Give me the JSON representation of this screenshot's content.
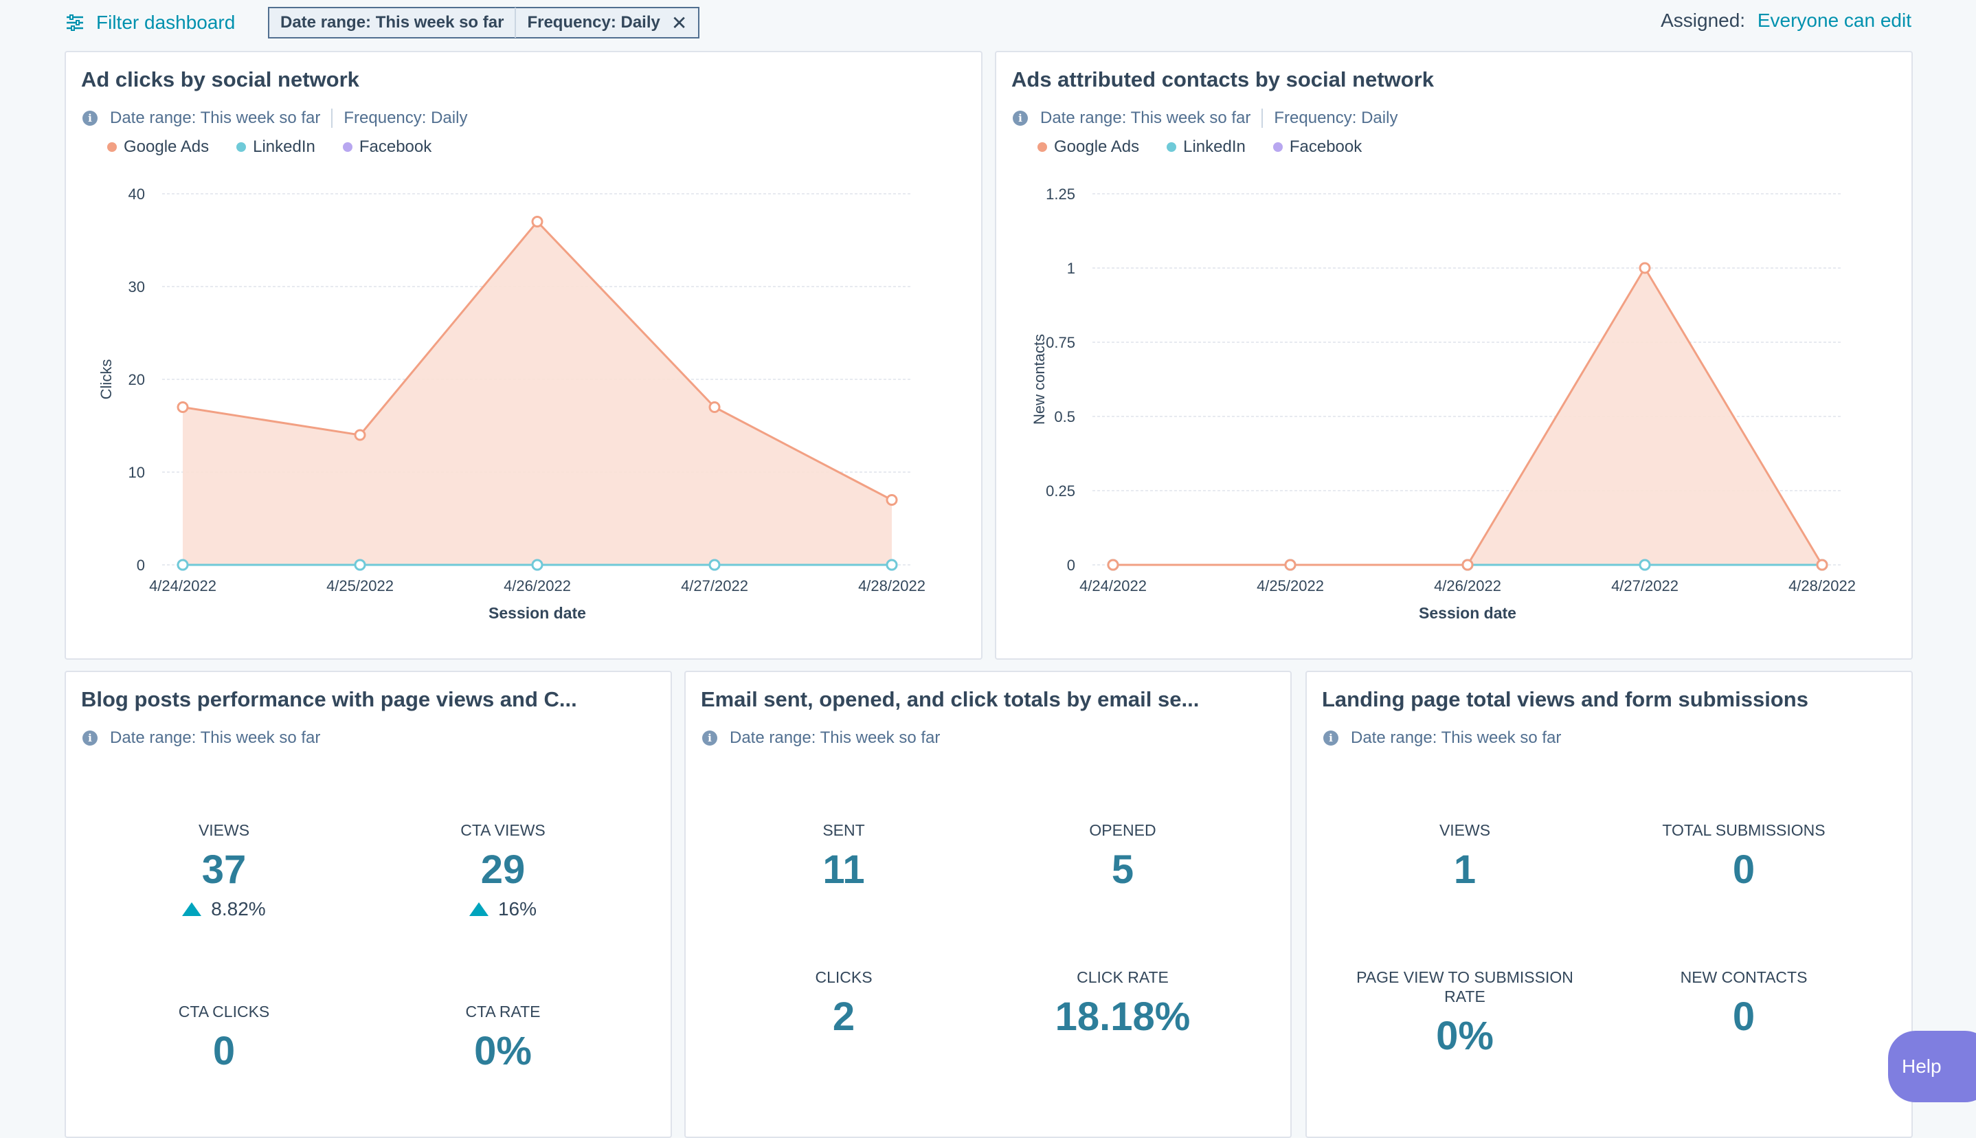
{
  "toolbar": {
    "filter_label": "Filter dashboard",
    "chip_date": "Date range: This week so far",
    "chip_freq": "Frequency: Daily",
    "assigned_label": "Assigned:",
    "assigned_value": "Everyone can edit"
  },
  "colors": {
    "google": "#f2a083",
    "linkedin": "#6fcad8",
    "facebook": "#b8a7f0",
    "accent": "#0091ae"
  },
  "cards": {
    "ad_clicks": {
      "title": "Ad clicks by social network",
      "date": "Date range: This week so far",
      "freq": "Frequency: Daily"
    },
    "ads_contacts": {
      "title": "Ads attributed contacts by social network",
      "date": "Date range: This week so far",
      "freq": "Frequency: Daily"
    },
    "blog": {
      "title": "Blog posts performance with page views and C...",
      "date": "Date range: This week so far",
      "views_label": "VIEWS",
      "views_value": "37",
      "views_change": "8.82%",
      "cta_views_label": "CTA VIEWS",
      "cta_views_value": "29",
      "cta_views_change": "16%",
      "cta_clicks_label": "CTA CLICKS",
      "cta_clicks_value": "0",
      "cta_rate_label": "CTA RATE",
      "cta_rate_value": "0%"
    },
    "email": {
      "title": "Email sent, opened, and click totals by email se...",
      "date": "Date range: This week so far",
      "sent_label": "SENT",
      "sent_value": "11",
      "opened_label": "OPENED",
      "opened_value": "5",
      "clicks_label": "CLICKS",
      "clicks_value": "2",
      "click_rate_label": "CLICK RATE",
      "click_rate_value": "18.18%"
    },
    "landing": {
      "title": "Landing page total views and form submissions",
      "date": "Date range: This week so far",
      "views_label": "VIEWS",
      "views_value": "1",
      "total_sub_label": "TOTAL SUBMISSIONS",
      "total_sub_value": "0",
      "pv_sub_label": "PAGE VIEW TO SUBMISSION RATE",
      "pv_sub_value": "0%",
      "new_contacts_label": "NEW CONTACTS",
      "new_contacts_value": "0"
    }
  },
  "legend": {
    "google": "Google Ads",
    "linkedin": "LinkedIn",
    "facebook": "Facebook"
  },
  "help_label": "Help",
  "chart_data": [
    {
      "type": "area",
      "title": "Ad clicks by social network",
      "xlabel": "Session date",
      "ylabel": "Clicks",
      "x": [
        "4/24/2022",
        "4/25/2022",
        "4/26/2022",
        "4/27/2022",
        "4/28/2022"
      ],
      "ylim": [
        0,
        40
      ],
      "yticks": [
        0,
        10,
        20,
        30,
        40
      ],
      "yticklabels": [
        "0",
        "10",
        "20",
        "30",
        "40"
      ],
      "series": [
        {
          "name": "Google Ads",
          "values": [
            17,
            14,
            37,
            17,
            7
          ]
        },
        {
          "name": "LinkedIn",
          "values": [
            0,
            0,
            0,
            0,
            0
          ]
        },
        {
          "name": "Facebook",
          "values": [
            0,
            0,
            0,
            0,
            0
          ]
        }
      ]
    },
    {
      "type": "area",
      "title": "Ads attributed contacts by social network",
      "xlabel": "Session date",
      "ylabel": "New contacts",
      "x": [
        "4/24/2022",
        "4/25/2022",
        "4/26/2022",
        "4/27/2022",
        "4/28/2022"
      ],
      "ylim": [
        0,
        1.25
      ],
      "yticks": [
        0,
        0.25,
        0.5,
        0.75,
        1,
        1.25
      ],
      "yticklabels": [
        "0",
        "0.25",
        "0.5",
        "0.75",
        "1",
        "1.25"
      ],
      "series": [
        {
          "name": "Google Ads",
          "values": [
            0,
            0,
            0,
            1,
            0
          ]
        },
        {
          "name": "LinkedIn",
          "values": [
            0,
            0,
            0,
            0,
            0
          ]
        },
        {
          "name": "Facebook",
          "values": [
            0,
            0,
            0,
            0,
            0
          ]
        }
      ]
    }
  ]
}
